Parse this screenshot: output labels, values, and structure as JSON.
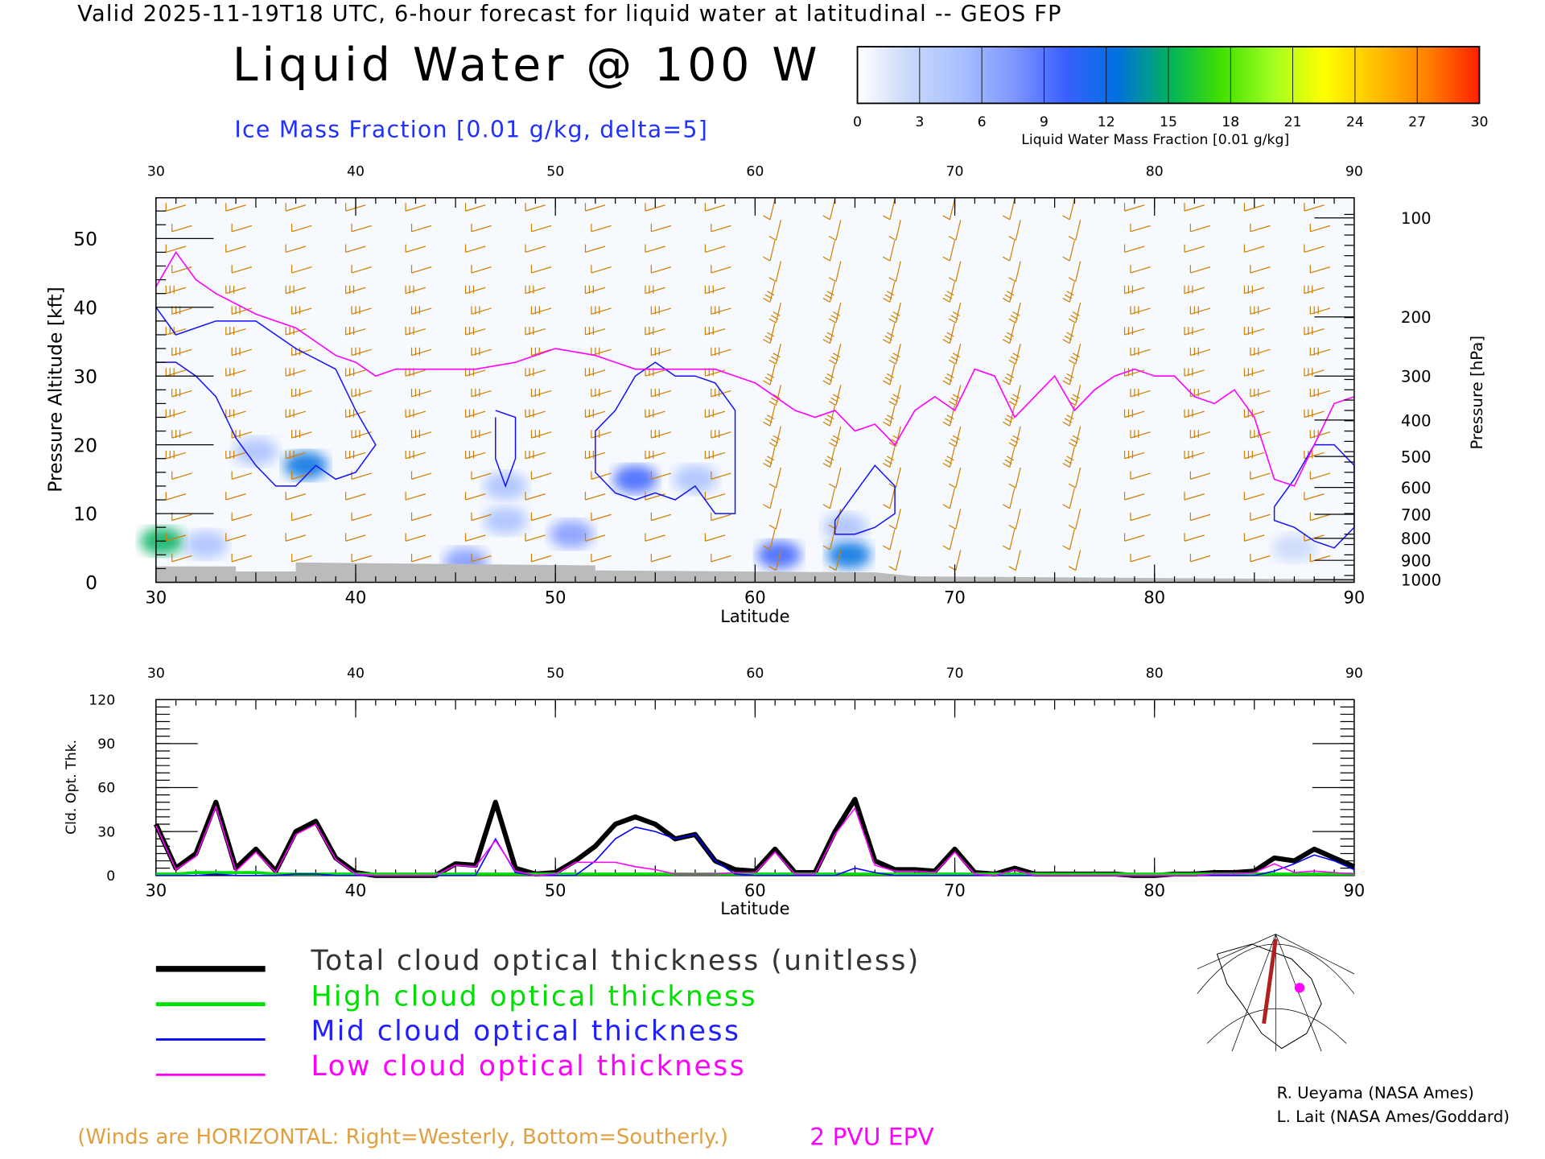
{
  "header": {
    "valid_line": "Valid 2025-11-19T18 UTC, 6-hour forecast for liquid water at latitudinal -- GEOS FP",
    "title": "Liquid Water @ 100 W",
    "subtitle": "Ice Mass Fraction [0.01 g/kg, delta=5]"
  },
  "colorbar": {
    "ticks": [
      "0",
      "3",
      "6",
      "9",
      "12",
      "15",
      "18",
      "21",
      "24",
      "27",
      "30"
    ],
    "label": "Liquid Water Mass Fraction [0.01 g/kg]",
    "colors": [
      "#ffffff",
      "#c8d8fa",
      "#a8c0ff",
      "#8098ff",
      "#3a60ff",
      "#0070e0",
      "#00b060",
      "#40e000",
      "#a0ff20",
      "#ffff00",
      "#ffc000",
      "#ff8000",
      "#ff2000"
    ]
  },
  "chart_data": [
    {
      "type": "heatmap",
      "title": "Liquid Water @ 100 W",
      "xlabel": "Latitude",
      "ylabel": "Pressure Altitude [kft]",
      "y2label": "Pressure [hPa]",
      "xlim": [
        30,
        90
      ],
      "ylim": [
        0,
        55
      ],
      "xticks": [
        "30",
        "40",
        "50",
        "60",
        "70",
        "80",
        "90"
      ],
      "yticks": [
        "0",
        "10",
        "20",
        "30",
        "40",
        "50"
      ],
      "pressure_ticks": [
        {
          "label": "100",
          "kft": 53
        },
        {
          "label": "200",
          "kft": 38.6
        },
        {
          "label": "300",
          "kft": 30
        },
        {
          "label": "400",
          "kft": 23.6
        },
        {
          "label": "500",
          "kft": 18.3
        },
        {
          "label": "600",
          "kft": 13.8
        },
        {
          "label": "700",
          "kft": 9.9
        },
        {
          "label": "800",
          "kft": 6.4
        },
        {
          "label": "900",
          "kft": 3.2
        },
        {
          "label": "1000",
          "kft": 0.4
        }
      ],
      "liquid_water_blobs": [
        {
          "lat": 30.3,
          "kft": 6,
          "value": 15
        },
        {
          "lat": 32.5,
          "kft": 5.5,
          "value": 4
        },
        {
          "lat": 35,
          "kft": 19,
          "value": 4
        },
        {
          "lat": 37.5,
          "kft": 17,
          "value": 12
        },
        {
          "lat": 45.5,
          "kft": 3,
          "value": 8
        },
        {
          "lat": 47.5,
          "kft": 14,
          "value": 5
        },
        {
          "lat": 47.5,
          "kft": 9,
          "value": 6
        },
        {
          "lat": 50.8,
          "kft": 7,
          "value": 7
        },
        {
          "lat": 54,
          "kft": 15,
          "value": 9
        },
        {
          "lat": 57,
          "kft": 15,
          "value": 4
        },
        {
          "lat": 61.2,
          "kft": 4,
          "value": 9
        },
        {
          "lat": 64.7,
          "kft": 4,
          "value": 12
        },
        {
          "lat": 64.5,
          "kft": 8,
          "value": 6
        },
        {
          "lat": 87,
          "kft": 5,
          "value": 3
        }
      ],
      "tropopause_2pvu": {
        "lat": [
          30,
          31,
          32,
          33,
          35,
          36,
          37,
          38,
          39,
          40,
          41,
          42,
          44,
          46,
          48,
          50,
          52,
          54,
          56,
          58,
          59,
          60,
          61,
          62,
          63,
          64,
          65,
          66,
          67,
          68,
          69,
          70,
          71,
          72,
          73,
          74,
          75,
          76,
          77,
          78,
          79,
          80,
          81,
          82,
          83,
          84,
          85,
          86,
          87,
          88,
          89,
          90
        ],
        "kft": [
          43,
          48,
          44,
          42,
          39,
          38,
          37,
          35,
          33,
          32,
          30,
          31,
          31,
          31,
          32,
          34,
          33,
          31,
          31,
          31,
          30,
          29,
          27,
          25,
          24,
          25,
          22,
          23,
          20,
          25,
          27,
          25,
          31,
          30,
          24,
          27,
          30,
          25,
          28,
          30,
          31,
          30,
          30,
          27,
          26,
          28,
          24,
          15,
          14,
          20,
          26,
          27
        ]
      },
      "ice_contours": [
        {
          "lat": [
            30,
            31,
            33,
            35,
            37,
            39,
            40,
            41,
            40,
            39,
            38,
            37,
            36,
            35,
            34,
            33,
            32,
            31,
            30
          ],
          "kft": [
            40,
            36,
            38,
            38,
            34,
            31,
            25,
            20,
            16,
            15,
            17,
            14,
            14,
            17,
            21,
            27,
            30,
            32,
            32
          ]
        },
        {
          "lat": [
            47,
            48,
            48,
            47.5,
            47,
            47
          ],
          "kft": [
            25,
            24,
            18,
            14,
            18,
            24
          ]
        },
        {
          "lat": [
            52,
            53,
            54,
            55,
            56,
            57,
            58,
            59,
            59,
            58,
            57,
            56,
            55,
            54,
            53,
            52,
            52
          ],
          "kft": [
            22,
            25,
            30,
            32,
            30,
            30,
            29,
            25,
            10,
            10,
            14,
            12,
            13,
            12,
            13,
            16,
            22
          ]
        },
        {
          "lat": [
            64,
            65,
            66,
            67,
            67,
            66,
            65,
            64,
            64
          ],
          "kft": [
            9,
            13,
            17,
            14,
            10,
            8,
            7,
            7,
            9
          ]
        },
        {
          "lat": [
            86,
            87,
            88,
            89,
            90,
            90,
            89,
            88,
            87,
            86,
            86
          ],
          "kft": [
            11,
            15,
            20,
            20,
            17,
            8,
            5,
            6,
            8,
            9,
            11
          ]
        }
      ],
      "legend": "(Winds are HORIZONTAL: Right=Westerly, Bottom=Southerly.)",
      "epv_label": "2 PVU EPV"
    },
    {
      "type": "line",
      "xlabel": "Latitude",
      "ylabel": "Cld. Opt. Thk.",
      "xlim": [
        30,
        90
      ],
      "ylim": [
        0,
        120
      ],
      "xticks": [
        "30",
        "40",
        "50",
        "60",
        "70",
        "80",
        "90"
      ],
      "yticks": [
        "0",
        "30",
        "60",
        "90",
        "120"
      ],
      "x": [
        30,
        31,
        32,
        33,
        34,
        35,
        36,
        37,
        38,
        39,
        40,
        41,
        42,
        43,
        44,
        45,
        46,
        47,
        48,
        49,
        50,
        51,
        52,
        53,
        54,
        55,
        56,
        57,
        58,
        59,
        60,
        61,
        62,
        63,
        64,
        65,
        66,
        67,
        68,
        69,
        70,
        71,
        72,
        73,
        74,
        75,
        76,
        77,
        78,
        79,
        80,
        81,
        82,
        83,
        84,
        85,
        86,
        87,
        88,
        89,
        90
      ],
      "series": [
        {
          "name": "Total cloud optical thickness (unitless)",
          "color": "#000000",
          "values": [
            35,
            5,
            15,
            50,
            5,
            18,
            3,
            30,
            37,
            12,
            2,
            0,
            0,
            0,
            0,
            8,
            7,
            50,
            5,
            1,
            2,
            10,
            20,
            35,
            40,
            35,
            25,
            28,
            10,
            4,
            3,
            18,
            2,
            2,
            30,
            52,
            10,
            4,
            4,
            3,
            18,
            2,
            1,
            5,
            1,
            1,
            1,
            1,
            1,
            0,
            0,
            1,
            1,
            2,
            2,
            3,
            12,
            10,
            18,
            12,
            6
          ]
        },
        {
          "name": "High cloud optical thickness",
          "color": "#00e000",
          "values": [
            1,
            1,
            2,
            2,
            2,
            2,
            1,
            1,
            1,
            1,
            1,
            1,
            1,
            1,
            1,
            1,
            1,
            1,
            1,
            1,
            1,
            1,
            1,
            1,
            1,
            1,
            1,
            1,
            1,
            1,
            1,
            1,
            1,
            1,
            1,
            1,
            1,
            1,
            1,
            1,
            1,
            1,
            1,
            1,
            1,
            1,
            1,
            1,
            1,
            1,
            1,
            1,
            1,
            1,
            1,
            1,
            1,
            1,
            1,
            1,
            1
          ]
        },
        {
          "name": "Mid cloud optical thickness",
          "color": "#0000ff",
          "values": [
            0,
            0,
            0,
            1,
            0,
            0,
            0,
            1,
            1,
            0,
            0,
            0,
            0,
            0,
            0,
            0,
            0,
            25,
            2,
            0,
            0,
            0,
            10,
            25,
            33,
            30,
            25,
            28,
            10,
            1,
            0,
            0,
            0,
            0,
            0,
            5,
            2,
            0,
            0,
            0,
            0,
            0,
            0,
            0,
            0,
            0,
            0,
            0,
            0,
            0,
            0,
            0,
            0,
            0,
            0,
            0,
            3,
            8,
            14,
            10,
            4
          ]
        },
        {
          "name": "Low cloud optical thickness",
          "color": "#ff00ff",
          "values": [
            34,
            4,
            13,
            47,
            3,
            16,
            2,
            28,
            35,
            11,
            1,
            0,
            0,
            0,
            0,
            7,
            6,
            24,
            3,
            0,
            1,
            9,
            9,
            9,
            6,
            4,
            1,
            1,
            1,
            2,
            2,
            16,
            1,
            1,
            28,
            46,
            7,
            3,
            3,
            2,
            16,
            1,
            0,
            4,
            0,
            0,
            0,
            0,
            0,
            0,
            0,
            0,
            0,
            1,
            1,
            2,
            8,
            2,
            3,
            2,
            1
          ]
        }
      ]
    }
  ],
  "credits": [
    "R. Ueyama (NASA Ames)",
    "L. Lait (NASA Ames/Goddard)"
  ]
}
